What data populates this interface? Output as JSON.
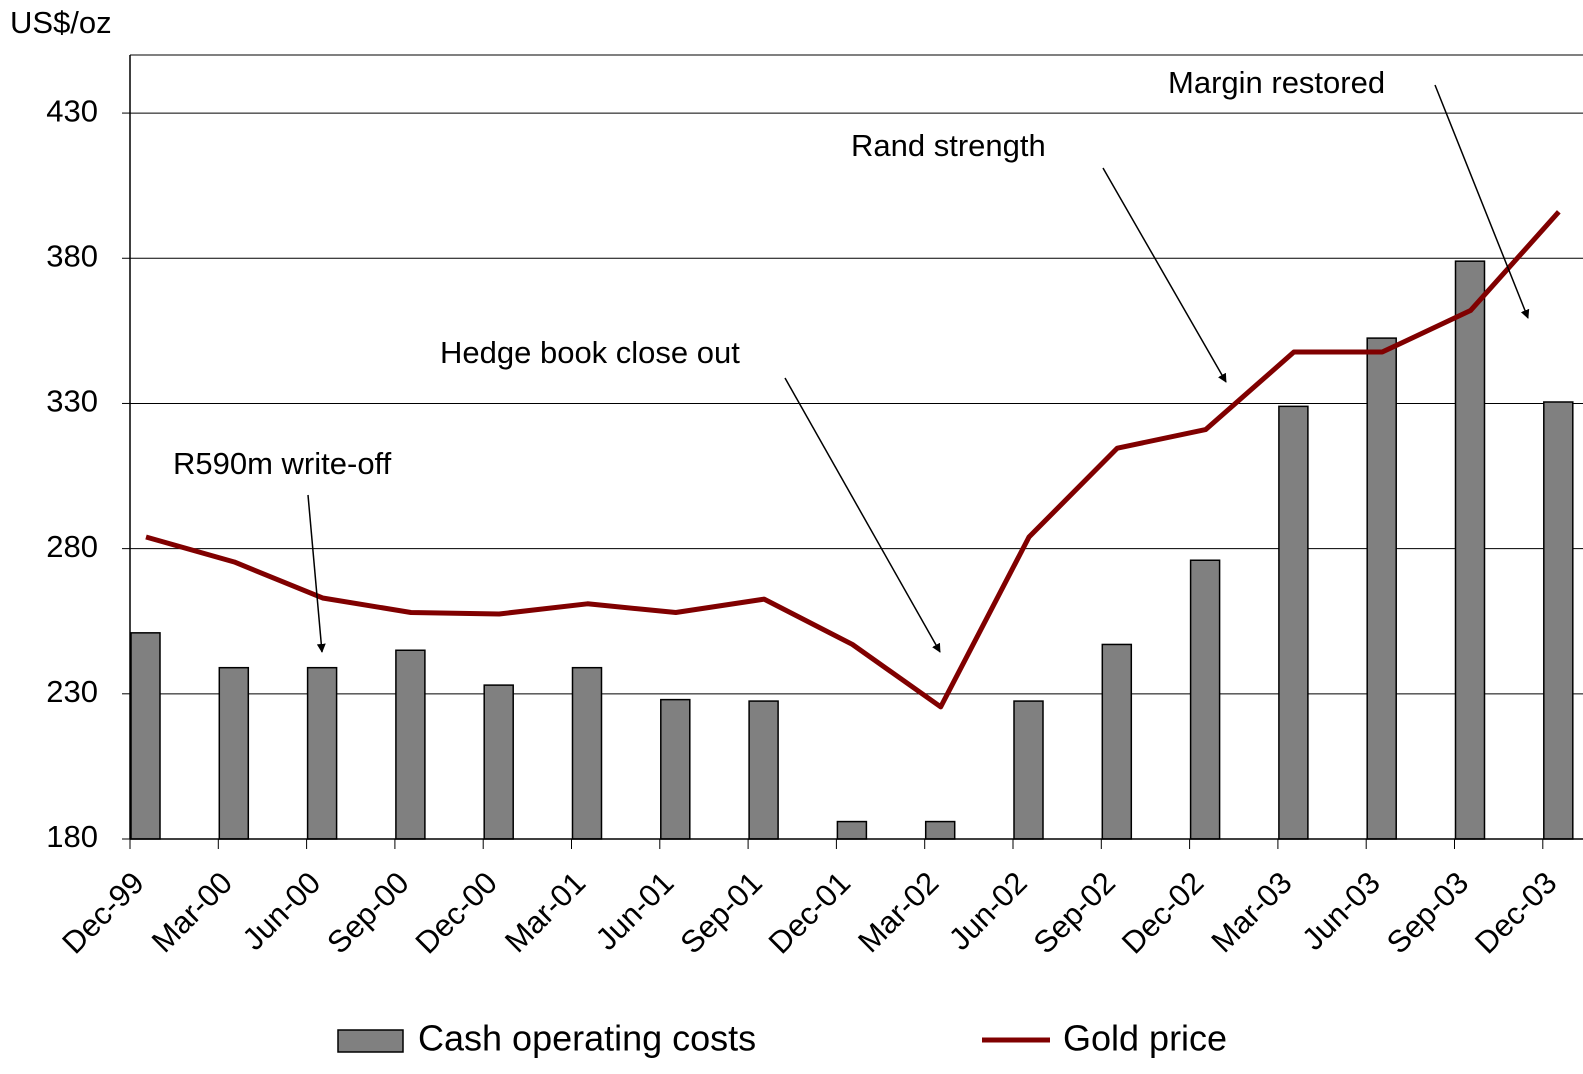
{
  "chart_data": {
    "type": "bar_line",
    "y_axis_label": "US$/oz",
    "categories": [
      "Dec-99",
      "Mar-00",
      "Jun-00",
      "Sep-00",
      "Dec-00",
      "Mar-01",
      "Jun-01",
      "Sep-01",
      "Dec-01",
      "Mar-02",
      "Jun-02",
      "Sep-02",
      "Dec-02",
      "Mar-03",
      "Jun-03",
      "Sep-03",
      "Dec-03"
    ],
    "series": [
      {
        "name": "Cash operating costs",
        "type": "bar",
        "color": "#808080",
        "values": [
          251,
          239,
          239,
          245,
          233,
          239,
          228,
          227.5,
          186,
          186,
          227.5,
          247,
          276,
          329,
          352.5,
          379,
          330.5
        ]
      },
      {
        "name": "Gold price",
        "type": "line",
        "color": "#800000",
        "values": [
          284,
          275.4,
          263,
          258,
          257.5,
          261,
          258,
          262.6,
          247,
          225.5,
          284,
          314.6,
          321,
          347.7,
          347.7,
          362,
          396
        ]
      }
    ],
    "ylim": [
      180,
      450
    ],
    "yticks": [
      180,
      230,
      280,
      330,
      380,
      430
    ],
    "grid": true,
    "annotations": [
      "R590m write-off",
      "Hedge book close out",
      "Rand strength",
      "Margin restored"
    ]
  }
}
